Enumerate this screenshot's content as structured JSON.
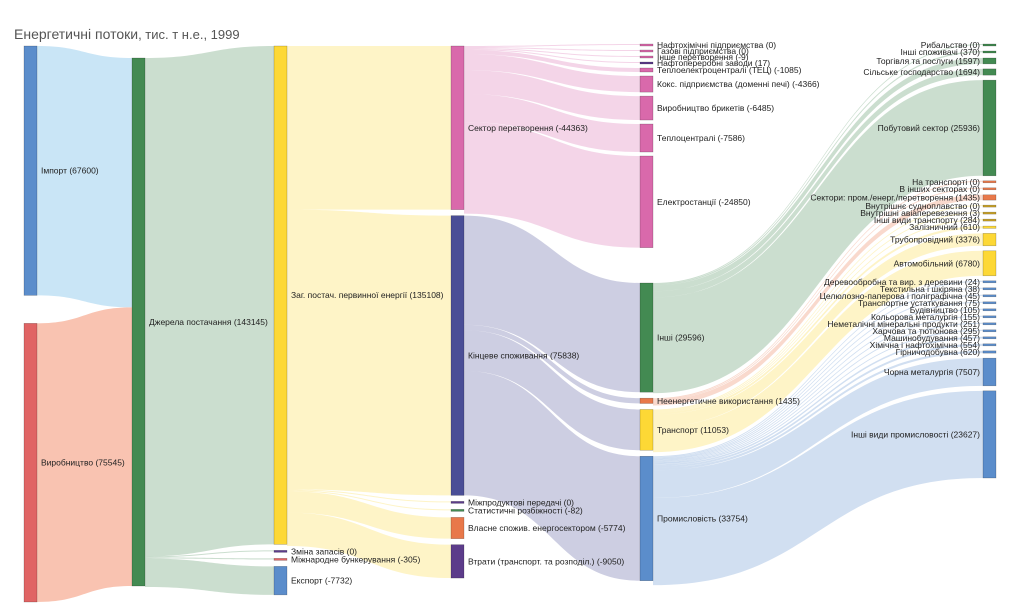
{
  "chart_data": {
    "type": "sankey",
    "title": "Енергетичні потоки",
    "subtitle": ", тис. т н.е., 1999",
    "nodes": [
      {
        "id": "import",
        "label": "Імпорт (67600)",
        "value": 67600,
        "color": "#5b8dcb"
      },
      {
        "id": "prod",
        "label": "Виробництво (75545)",
        "value": 75545,
        "color": "#e06464"
      },
      {
        "id": "src",
        "label": "Джерела постачання (143145)",
        "value": 143145,
        "color": "#438a52"
      },
      {
        "id": "tpes",
        "label": "Заг. постач. первинної енергії (135108)",
        "value": 135108,
        "color": "#fdd835"
      },
      {
        "id": "stock",
        "label": "Зміна запасів (0)",
        "value": 0,
        "color": "#5c3c8a"
      },
      {
        "id": "bunk",
        "label": "Міжнародне бункерування (-305)",
        "value": -305,
        "color": "#e06464"
      },
      {
        "id": "exp",
        "label": "Експорт (-7732)",
        "value": -7732,
        "color": "#5b8dcb"
      },
      {
        "id": "transf",
        "label": "Сектор перетворення (-44363)",
        "value": -44363,
        "color": "#d969ab"
      },
      {
        "id": "final",
        "label": "Кінцеве споживання (75838)",
        "value": 75838,
        "color": "#4a4e96"
      },
      {
        "id": "interprod",
        "label": "Міжпродуктові передачі (0)",
        "value": 0,
        "color": "#5c3c8a"
      },
      {
        "id": "statdiff",
        "label": "Статистичні розбіжності (-82)",
        "value": -82,
        "color": "#438a52"
      },
      {
        "id": "own",
        "label": "Власне спожив. енергосектором (-5774)",
        "value": -5774,
        "color": "#e8784a"
      },
      {
        "id": "losses",
        "label": "Втрати (транспорт. та розподіл.) (-9050)",
        "value": -9050,
        "color": "#5c3c8a"
      },
      {
        "id": "petchem",
        "label": "Нафтохімічні підприємства (0)",
        "value": 0,
        "color": "#d969ab"
      },
      {
        "id": "gasw",
        "label": "Газові підприємства (0)",
        "value": 0,
        "color": "#d969ab"
      },
      {
        "id": "othtr",
        "label": "Інше перетворення (-9)",
        "value": -9,
        "color": "#d969ab"
      },
      {
        "id": "refin",
        "label": "Нафтопереробні заводи (17)",
        "value": 17,
        "color": "#5c3c8a"
      },
      {
        "id": "chp",
        "label": "Теплоелектроцентралі (ТЕЦ) (-1085)",
        "value": -1085,
        "color": "#d969ab"
      },
      {
        "id": "coke",
        "label": "Кокс. підприємства (доменні печі) (-4366)",
        "value": -4366,
        "color": "#d969ab"
      },
      {
        "id": "briq",
        "label": "Виробництво брикетів (-6485)",
        "value": -6485,
        "color": "#d969ab"
      },
      {
        "id": "heat",
        "label": "Теплоцентралі (-7586)",
        "value": -7586,
        "color": "#d969ab"
      },
      {
        "id": "power",
        "label": "Електростанції (-24850)",
        "value": -24850,
        "color": "#d969ab"
      },
      {
        "id": "other",
        "label": "Інші (29596)",
        "value": 29596,
        "color": "#438a52"
      },
      {
        "id": "nonen",
        "label": "Неенергетичне використання (1435)",
        "value": 1435,
        "color": "#e8784a"
      },
      {
        "id": "transp",
        "label": "Транспорт (11053)",
        "value": 11053,
        "color": "#fdd835"
      },
      {
        "id": "indus",
        "label": "Промисловість (33754)",
        "value": 33754,
        "color": "#5b8dcb"
      },
      {
        "id": "fish",
        "label": "Рибальство (0)",
        "value": 0,
        "color": "#438a52"
      },
      {
        "id": "othns",
        "label": "Інші споживачі (370)",
        "value": 370,
        "color": "#438a52"
      },
      {
        "id": "comm",
        "label": "Торгівля та послуги (1597)",
        "value": 1597,
        "color": "#438a52"
      },
      {
        "id": "agri",
        "label": "Сільське господарство (1694)",
        "value": 1694,
        "color": "#438a52"
      },
      {
        "id": "resid",
        "label": "Побутовий сектор (25936)",
        "value": 25936,
        "color": "#438a52"
      },
      {
        "id": "ne_tr",
        "label": "На транспорті (0)",
        "value": 0,
        "color": "#e8784a"
      },
      {
        "id": "ne_oth",
        "label": "В інших секторах (0)",
        "value": 0,
        "color": "#e8784a"
      },
      {
        "id": "ne_ind",
        "label": "Сектори: пром./енерг./перетворення (1435)",
        "value": 1435,
        "color": "#e8784a"
      },
      {
        "id": "navig",
        "label": "Внутрішнє судноплавство (0)",
        "value": 0,
        "color": "#c9a227"
      },
      {
        "id": "avia",
        "label": "Внутрішні авіаперевезення (3)",
        "value": 3,
        "color": "#c9a227"
      },
      {
        "id": "othtrn",
        "label": "Інші види транспорту (284)",
        "value": 284,
        "color": "#c9a227"
      },
      {
        "id": "rail",
        "label": "Залізничний (610)",
        "value": 610,
        "color": "#fdd835"
      },
      {
        "id": "pipe",
        "label": "Трубопровідний (3376)",
        "value": 3376,
        "color": "#fdd835"
      },
      {
        "id": "road",
        "label": "Автомобільний (6780)",
        "value": 6780,
        "color": "#fdd835"
      },
      {
        "id": "wood",
        "label": "Деревообробна та вир. з деревини (24)",
        "value": 24,
        "color": "#5b8dcb"
      },
      {
        "id": "text",
        "label": "Текстильна і шкіряна (38)",
        "value": 38,
        "color": "#5b8dcb"
      },
      {
        "id": "paper",
        "label": "Целюлозно-паперова і поліграфічна (45)",
        "value": 45,
        "color": "#5b8dcb"
      },
      {
        "id": "treq",
        "label": "Транспортне устаткування (75)",
        "value": 75,
        "color": "#5b8dcb"
      },
      {
        "id": "constr",
        "label": "Будівництво (105)",
        "value": 105,
        "color": "#5b8dcb"
      },
      {
        "id": "nonfer",
        "label": "Кольорова металургія (155)",
        "value": 155,
        "color": "#5b8dcb"
      },
      {
        "id": "nonmet",
        "label": "Неметалічні мінеральні продукти (251)",
        "value": 251,
        "color": "#5b8dcb"
      },
      {
        "id": "food",
        "label": "Харчова та тютюнова (295)",
        "value": 295,
        "color": "#5b8dcb"
      },
      {
        "id": "mach",
        "label": "Машинобудування (457)",
        "value": 457,
        "color": "#5b8dcb"
      },
      {
        "id": "chem",
        "label": "Хімічна і нафтохімічна (554)",
        "value": 554,
        "color": "#5b8dcb"
      },
      {
        "id": "mining",
        "label": "Гірничодобувна (620)",
        "value": 620,
        "color": "#5b8dcb"
      },
      {
        "id": "ironst",
        "label": "Чорна металургія (7507)",
        "value": 7507,
        "color": "#5b8dcb"
      },
      {
        "id": "othind",
        "label": "Інші види промисловості (23627)",
        "value": 23627,
        "color": "#5b8dcb"
      }
    ],
    "links": [
      {
        "source": "import",
        "target": "src",
        "value": 67600
      },
      {
        "source": "prod",
        "target": "src",
        "value": 75545
      },
      {
        "source": "src",
        "target": "tpes",
        "value": 135108
      },
      {
        "source": "src",
        "target": "stock",
        "value": 0
      },
      {
        "source": "src",
        "target": "bunk",
        "value": 305
      },
      {
        "source": "src",
        "target": "exp",
        "value": 7732
      },
      {
        "source": "tpes",
        "target": "transf",
        "value": 44363
      },
      {
        "source": "tpes",
        "target": "final",
        "value": 75838
      },
      {
        "source": "tpes",
        "target": "interprod",
        "value": 0
      },
      {
        "source": "tpes",
        "target": "statdiff",
        "value": 82
      },
      {
        "source": "tpes",
        "target": "own",
        "value": 5774
      },
      {
        "source": "tpes",
        "target": "losses",
        "value": 9050
      },
      {
        "source": "transf",
        "target": "petchem",
        "value": 0
      },
      {
        "source": "transf",
        "target": "gasw",
        "value": 0
      },
      {
        "source": "transf",
        "target": "othtr",
        "value": 9
      },
      {
        "source": "transf",
        "target": "refin",
        "value": 17
      },
      {
        "source": "transf",
        "target": "chp",
        "value": 1085
      },
      {
        "source": "transf",
        "target": "coke",
        "value": 4366
      },
      {
        "source": "transf",
        "target": "briq",
        "value": 6485
      },
      {
        "source": "transf",
        "target": "heat",
        "value": 7586
      },
      {
        "source": "transf",
        "target": "power",
        "value": 24850
      },
      {
        "source": "final",
        "target": "other",
        "value": 29596
      },
      {
        "source": "final",
        "target": "nonen",
        "value": 1435
      },
      {
        "source": "final",
        "target": "transp",
        "value": 11053
      },
      {
        "source": "final",
        "target": "indus",
        "value": 33754
      },
      {
        "source": "other",
        "target": "fish",
        "value": 0
      },
      {
        "source": "other",
        "target": "othns",
        "value": 370
      },
      {
        "source": "other",
        "target": "comm",
        "value": 1597
      },
      {
        "source": "other",
        "target": "agri",
        "value": 1694
      },
      {
        "source": "other",
        "target": "resid",
        "value": 25936
      },
      {
        "source": "nonen",
        "target": "ne_tr",
        "value": 0
      },
      {
        "source": "nonen",
        "target": "ne_oth",
        "value": 0
      },
      {
        "source": "nonen",
        "target": "ne_ind",
        "value": 1435
      },
      {
        "source": "transp",
        "target": "navig",
        "value": 0
      },
      {
        "source": "transp",
        "target": "avia",
        "value": 3
      },
      {
        "source": "transp",
        "target": "othtrn",
        "value": 284
      },
      {
        "source": "transp",
        "target": "rail",
        "value": 610
      },
      {
        "source": "transp",
        "target": "pipe",
        "value": 3376
      },
      {
        "source": "transp",
        "target": "road",
        "value": 6780
      },
      {
        "source": "indus",
        "target": "wood",
        "value": 24
      },
      {
        "source": "indus",
        "target": "text",
        "value": 38
      },
      {
        "source": "indus",
        "target": "paper",
        "value": 45
      },
      {
        "source": "indus",
        "target": "treq",
        "value": 75
      },
      {
        "source": "indus",
        "target": "constr",
        "value": 105
      },
      {
        "source": "indus",
        "target": "nonfer",
        "value": 155
      },
      {
        "source": "indus",
        "target": "nonmet",
        "value": 251
      },
      {
        "source": "indus",
        "target": "food",
        "value": 295
      },
      {
        "source": "indus",
        "target": "mach",
        "value": 457
      },
      {
        "source": "indus",
        "target": "chem",
        "value": 554
      },
      {
        "source": "indus",
        "target": "mining",
        "value": 620
      },
      {
        "source": "indus",
        "target": "ironst",
        "value": 7507
      },
      {
        "source": "indus",
        "target": "othind",
        "value": 23627
      }
    ]
  }
}
